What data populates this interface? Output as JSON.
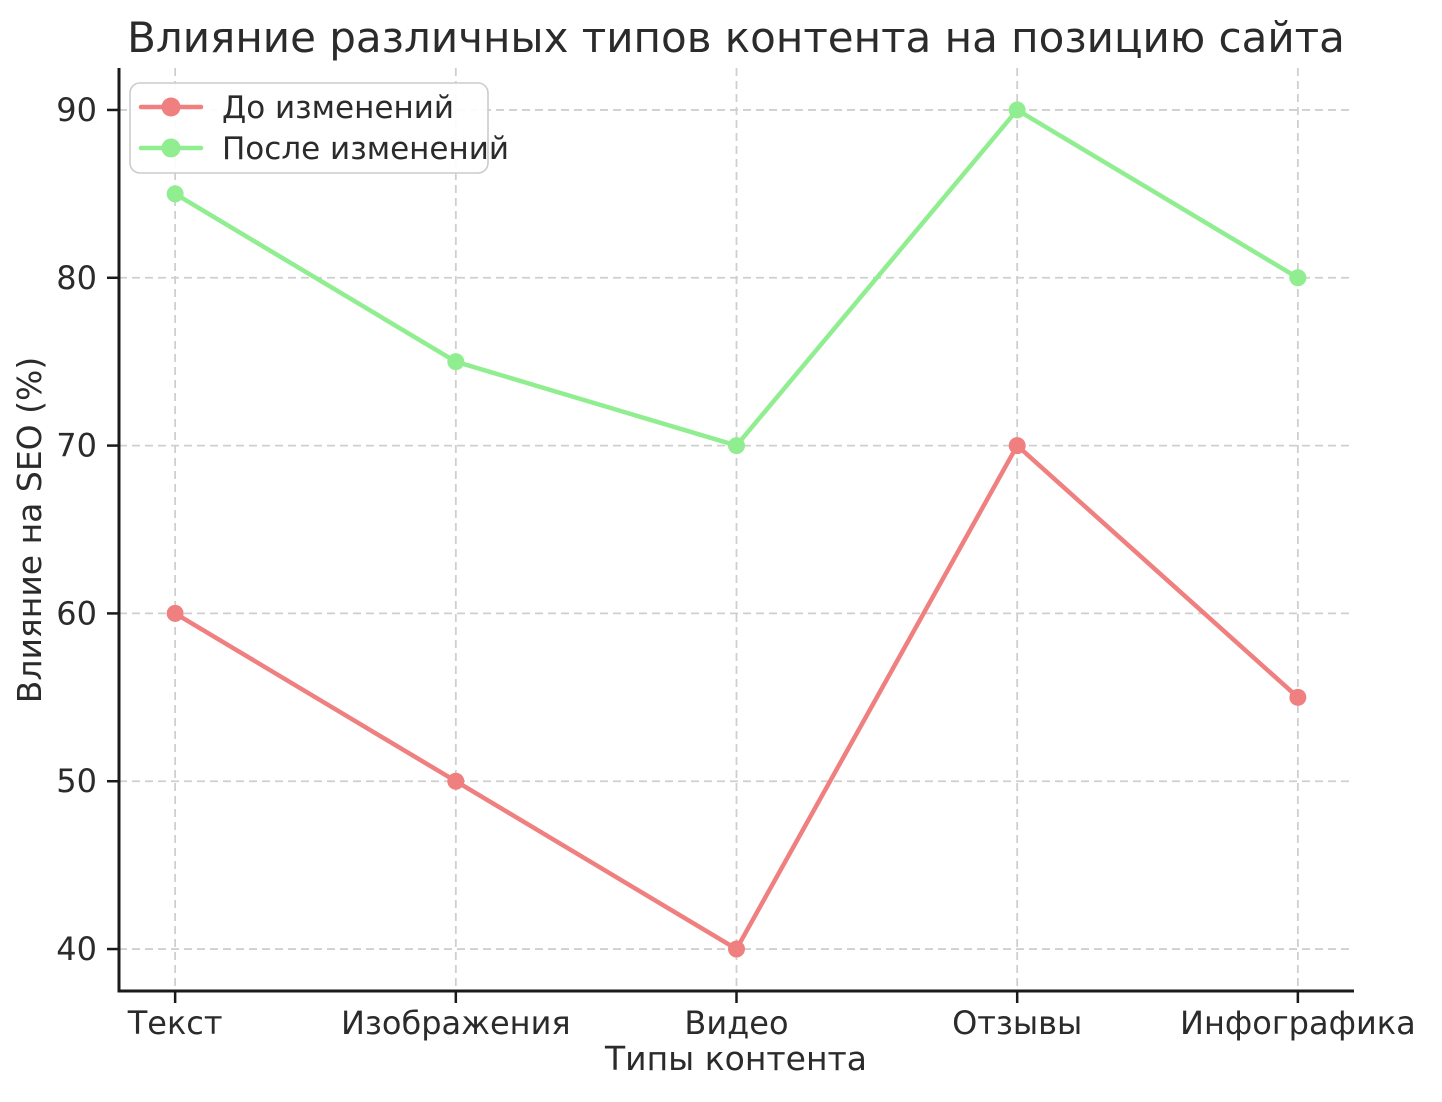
{
  "chart_data": {
    "type": "line",
    "title": "Влияние различных типов контента на позицию сайта",
    "xlabel": "Типы контента",
    "ylabel": "Влияние на SEO (%)",
    "categories": [
      "Текст",
      "Изображения",
      "Видео",
      "Отзывы",
      "Инфографика"
    ],
    "series": [
      {
        "name": "До изменений",
        "color": "#F08080",
        "values": [
          60,
          50,
          40,
          70,
          55
        ]
      },
      {
        "name": "После изменений",
        "color": "#90EE90",
        "values": [
          85,
          75,
          70,
          90,
          80
        ]
      }
    ],
    "yticks": [
      40,
      50,
      60,
      70,
      80,
      90
    ],
    "ylim": [
      37.5,
      92.5
    ],
    "xlim": [
      -0.2,
      4.2
    ],
    "grid": "dashed",
    "grid_color": "#cfcfcf",
    "axis_color": "#1a1a1a",
    "text_color": "#2b2b2b",
    "background": "#ffffff",
    "legend_position": "upper-left"
  }
}
